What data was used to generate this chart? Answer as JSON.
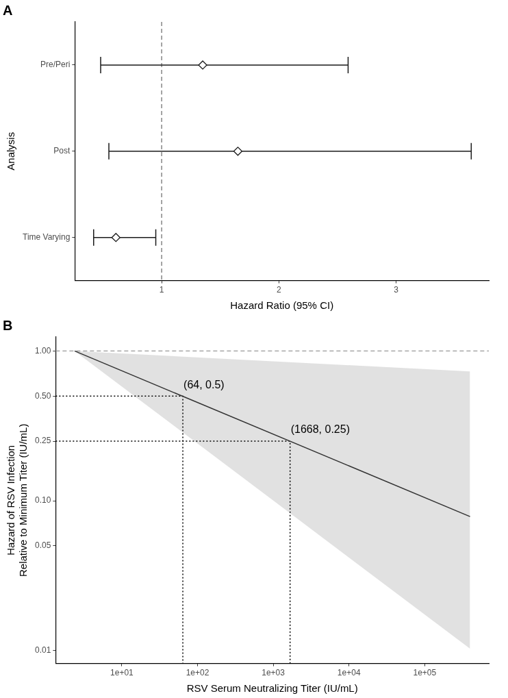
{
  "chart_data": [
    {
      "type": "scatter",
      "title": "A",
      "orientation": "horizontal",
      "xlabel": "Hazard Ratio (95% CI)",
      "ylabel": "Analysis",
      "categories": [
        "Pre/Peri",
        "Post",
        "Time Varying"
      ],
      "marker": "diamond",
      "series": [
        {
          "color": "#1a1a1a",
          "values": [
            1.35,
            1.65,
            0.61
          ],
          "errors": [
            [
              0.48,
              2.59
            ],
            [
              0.55,
              3.64
            ],
            [
              0.42,
              0.95
            ]
          ]
        }
      ],
      "xlim": [
        0.26,
        3.79
      ],
      "xticks": [
        1,
        2,
        3
      ],
      "ref_lines": [
        {
          "axis": "x",
          "value": 1,
          "color": "#666666",
          "line_style": "dashed"
        }
      ]
    },
    {
      "type": "line",
      "title": "B",
      "log": "xy",
      "xlabel": "RSV Serum Neutralizing Titer (IU/mL)",
      "ylabel": "Hazard of RSV Infection\nRelative to Minimum Titer (IU/mL)",
      "series": [
        {
          "color": "#333333",
          "x": [
            2.38,
            397000
          ],
          "values": [
            1,
            0.0785
          ],
          "lower": [
            1,
            0.0103
          ],
          "upper": [
            1,
            0.73
          ]
        },
        {
          "color": "#000000",
          "line_style": "dotted",
          "x": [
            1.34,
            64,
            64
          ],
          "values": [
            0.5,
            0.5,
            0.0082
          ]
        },
        {
          "color": "#000000",
          "line_style": "dotted",
          "x": [
            1.34,
            1668,
            1668
          ],
          "values": [
            0.25,
            0.25,
            0.0082
          ]
        }
      ],
      "xlim": [
        1.34,
        703000
      ],
      "xticks": [
        {
          "value": 10,
          "label": "1e+01"
        },
        {
          "value": 100,
          "label": "1e+02"
        },
        {
          "value": 1000,
          "label": "1e+03"
        },
        {
          "value": 10000,
          "label": "1e+04"
        },
        {
          "value": 100000,
          "label": "1e+05"
        }
      ],
      "ylim": [
        0.0082,
        1.24
      ],
      "yticks": [
        {
          "value": 0.01,
          "label": "0.01"
        },
        {
          "value": 0.05,
          "label": "0.05"
        },
        {
          "value": 0.1,
          "label": "0.10"
        },
        {
          "value": 0.25,
          "label": "0.25"
        },
        {
          "value": 0.5,
          "label": "0.50"
        },
        {
          "value": 1,
          "label": "1.00"
        }
      ],
      "ref_lines": [
        {
          "axis": "y",
          "value": 1,
          "color": "#999999",
          "line_style": "dashed"
        }
      ],
      "annotations": [
        {
          "text": "(64, 0.5)",
          "x": 64,
          "y": 0.5
        },
        {
          "text": "(1668, 0.25)",
          "x": 1668,
          "y": 0.25
        }
      ]
    }
  ]
}
